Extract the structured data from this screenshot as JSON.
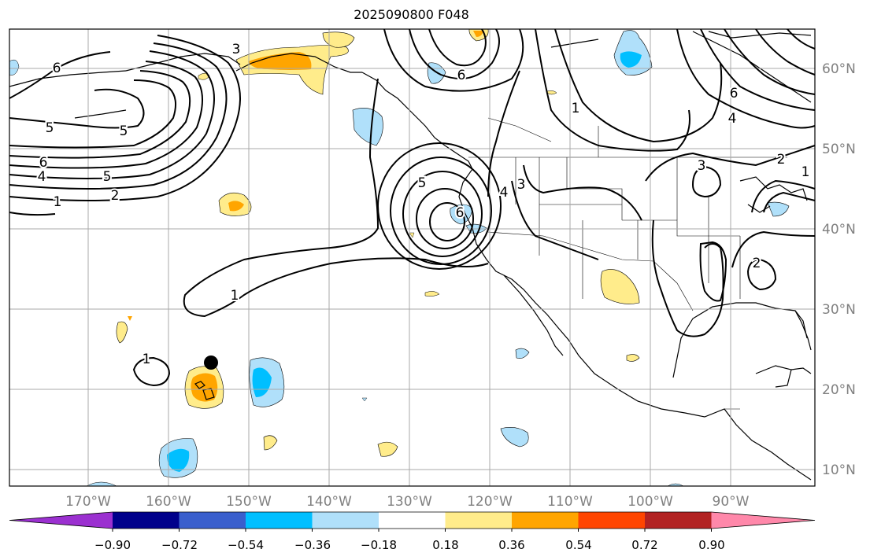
{
  "title": "2025090800 F048",
  "latitude_labels": [
    "60°N",
    "50°N",
    "40°N",
    "30°N",
    "20°N",
    "10°N"
  ],
  "longitude_labels": [
    "170°W",
    "160°W",
    "150°W",
    "140°W",
    "130°W",
    "120°W",
    "110°W",
    "100°W",
    "90°W"
  ],
  "colorbar": {
    "tick_labels": [
      "−0.90",
      "−0.72",
      "−0.54",
      "−0.36",
      "−0.18",
      "0.18",
      "0.36",
      "0.54",
      "0.72",
      "0.90"
    ],
    "colors": [
      "#9b30d0",
      "#00008b",
      "#3a5fcd",
      "#00bfff",
      "#b0e0fa",
      "#ffffff",
      "#ffec8b",
      "#ffa500",
      "#ff4500",
      "#b22222",
      "#ff88aa"
    ]
  },
  "contour_labels": [
    {
      "text": "6"
    },
    {
      "text": "5"
    },
    {
      "text": "5"
    },
    {
      "text": "6"
    },
    {
      "text": "4"
    },
    {
      "text": "5"
    },
    {
      "text": "2"
    },
    {
      "text": "1"
    },
    {
      "text": "3"
    },
    {
      "text": "1"
    },
    {
      "text": "1"
    },
    {
      "text": "5"
    },
    {
      "text": "6"
    },
    {
      "text": "4"
    },
    {
      "text": "3"
    },
    {
      "text": "6"
    },
    {
      "text": "1"
    },
    {
      "text": "6"
    },
    {
      "text": "4"
    },
    {
      "text": "3"
    },
    {
      "text": "2"
    },
    {
      "text": "1"
    },
    {
      "text": "2"
    }
  ],
  "marker": {
    "label": "point-marker"
  },
  "colors": {
    "grid": "#a9a9a9",
    "axis_text": "#808080",
    "contour": "#000000"
  }
}
